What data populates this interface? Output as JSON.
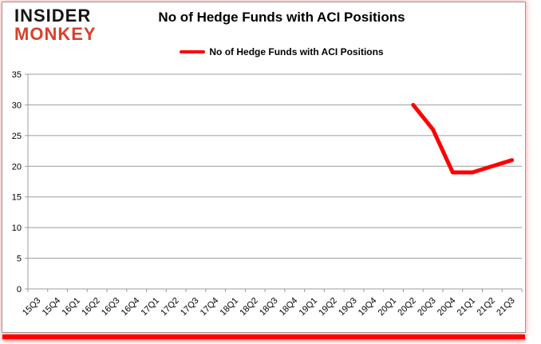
{
  "brand": {
    "line1": "INSIDER",
    "line2": "MONKEY",
    "color_line1": "#141414",
    "color_line2": "#d8402d"
  },
  "title": "No of Hedge Funds with ACI Positions",
  "legend": {
    "label": "No of Hedge Funds with ACI Positions",
    "line_color": "#ff0000"
  },
  "frame": {
    "border_color": "#9a9a9a",
    "bottom_bar_color": "#ff0000"
  },
  "chart_data": {
    "type": "line",
    "title": "No of Hedge Funds with ACI Positions",
    "categories": [
      "15Q3",
      "15Q4",
      "16Q1",
      "16Q2",
      "16Q3",
      "16Q4",
      "17Q1",
      "17Q2",
      "17Q3",
      "17Q4",
      "18Q1",
      "18Q2",
      "18Q3",
      "18Q4",
      "19Q1",
      "19Q2",
      "19Q3",
      "19Q4",
      "20Q1",
      "20Q2",
      "20Q3",
      "20Q4",
      "21Q1",
      "21Q2",
      "21Q3"
    ],
    "series": [
      {
        "name": "No of Hedge Funds with ACI Positions",
        "color": "#ff0000",
        "values": [
          null,
          null,
          null,
          null,
          null,
          null,
          null,
          null,
          null,
          null,
          null,
          null,
          null,
          null,
          null,
          null,
          null,
          null,
          null,
          30,
          26,
          19,
          19,
          20,
          21
        ]
      }
    ],
    "xlabel": "",
    "ylabel": "",
    "ylim": [
      0,
      35
    ],
    "yticks": [
      0,
      5,
      10,
      15,
      20,
      25,
      30,
      35
    ],
    "grid": "horizontal",
    "gridline_color": "#9c9c9c",
    "axis_color": "#9c9c9c",
    "tick_label_color": "#000000",
    "legend_position": "top-center"
  }
}
